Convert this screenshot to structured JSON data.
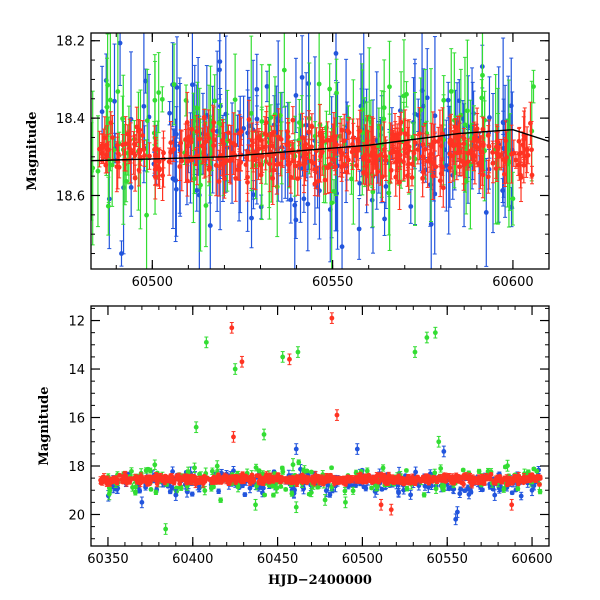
{
  "chart_data": [
    {
      "type": "scatter",
      "title": "",
      "xlabel": "",
      "ylabel": "Magnitude",
      "xlim": [
        60483,
        60610
      ],
      "ylim": [
        18.79,
        18.18
      ],
      "y_inverted": true,
      "x_ticks": [
        60500,
        60550,
        60600
      ],
      "y_ticks": [
        18.2,
        18.4,
        18.6
      ],
      "grid": false,
      "legend": "none",
      "error_bars": true,
      "series": [
        {
          "color": "#2255dd",
          "seed": 11,
          "n": 180,
          "x_range": [
            60483,
            60600
          ],
          "mag_mean": 18.47,
          "mag_scatter": 0.14,
          "err_range": [
            0.03,
            0.22
          ]
        },
        {
          "color": "#33dd33",
          "seed": 23,
          "n": 150,
          "x_range": [
            60483,
            60606
          ],
          "mag_mean": 18.46,
          "mag_scatter": 0.12,
          "err_range": [
            0.03,
            0.2
          ]
        },
        {
          "color": "#ff3322",
          "seed": 37,
          "n": 420,
          "x_range": [
            60485,
            60606
          ],
          "mag_mean": 18.49,
          "mag_scatter": 0.05,
          "err_range": [
            0.02,
            0.08
          ]
        }
      ],
      "trend_line": {
        "color": "#000000",
        "x": [
          60483,
          60520,
          60560,
          60585,
          60600,
          60610
        ],
        "y": [
          18.51,
          18.5,
          18.47,
          18.44,
          18.43,
          18.46
        ]
      }
    },
    {
      "type": "scatter",
      "title": "",
      "xlabel": "HJD−2400000",
      "ylabel": "Magnitude",
      "xlim": [
        60340,
        60610
      ],
      "ylim": [
        21.3,
        11.4
      ],
      "y_inverted": true,
      "x_ticks": [
        60350,
        60400,
        60450,
        60500,
        60550,
        60600
      ],
      "y_ticks": [
        12,
        14,
        16,
        18,
        20
      ],
      "grid": false,
      "legend": "none",
      "error_bars": true,
      "series": [
        {
          "color": "#2255dd",
          "seed": 51,
          "n": 260,
          "x_range": [
            60350,
            60605
          ],
          "mag_mean": 18.7,
          "mag_scatter": 0.35,
          "err_range": [
            0.05,
            0.25
          ]
        },
        {
          "color": "#33dd33",
          "seed": 63,
          "n": 200,
          "x_range": [
            60350,
            60605
          ],
          "mag_mean": 18.6,
          "mag_scatter": 0.4,
          "err_range": [
            0.05,
            0.25
          ]
        },
        {
          "color": "#ff3322",
          "seed": 77,
          "n": 700,
          "x_range": [
            60345,
            60605
          ],
          "mag_mean": 18.55,
          "mag_scatter": 0.12,
          "err_range": [
            0.03,
            0.15
          ]
        }
      ],
      "outliers": [
        {
          "color": "#33dd33",
          "points": [
            [
              60408,
              12.9
            ],
            [
              60425,
              14.0
            ],
            [
              60453,
              13.5
            ],
            [
              60462,
              13.3
            ],
            [
              60531,
              13.3
            ],
            [
              60538,
              12.7
            ],
            [
              60543,
              12.5
            ],
            [
              60402,
              16.4
            ],
            [
              60442,
              16.7
            ],
            [
              60545,
              17.0
            ],
            [
              60384,
              20.6
            ],
            [
              60437,
              19.6
            ],
            [
              60461,
              19.7
            ],
            [
              60478,
              19.4
            ],
            [
              60490,
              19.5
            ]
          ]
        },
        {
          "color": "#ff3322",
          "points": [
            [
              60423,
              12.3
            ],
            [
              60429,
              13.7
            ],
            [
              60457,
              13.6
            ],
            [
              60482,
              11.9
            ],
            [
              60485,
              15.9
            ],
            [
              60424,
              16.8
            ],
            [
              60511,
              19.6
            ],
            [
              60517,
              19.8
            ],
            [
              60588,
              19.6
            ]
          ]
        },
        {
          "color": "#2255dd",
          "points": [
            [
              60461,
              17.3
            ],
            [
              60497,
              17.3
            ],
            [
              60548,
              17.4
            ],
            [
              60555,
              20.2
            ],
            [
              60556,
              19.9
            ],
            [
              60370,
              19.5
            ],
            [
              60390,
              19.2
            ],
            [
              60578,
              19.2
            ],
            [
              60600,
              19.0
            ]
          ]
        }
      ]
    }
  ]
}
